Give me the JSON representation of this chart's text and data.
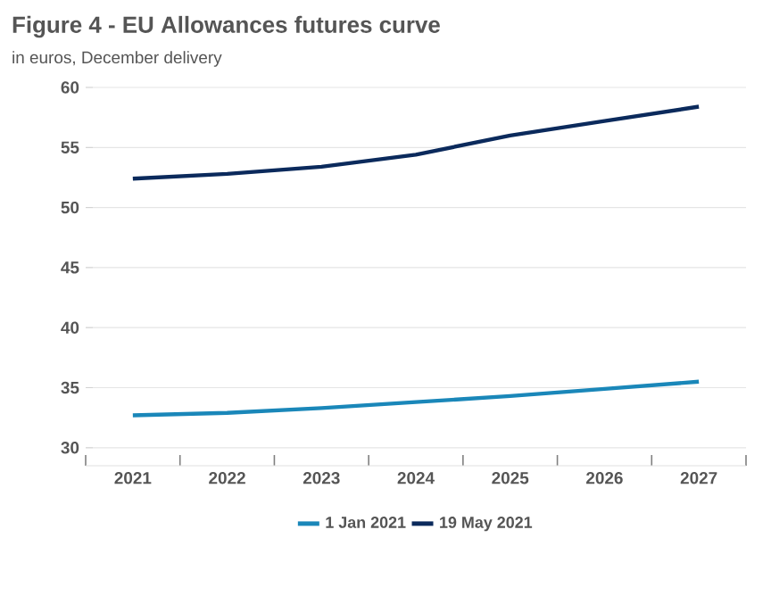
{
  "chart_data": {
    "type": "line",
    "title": "Figure 4 - EU Allowances futures curve",
    "subtitle": "in euros, December delivery",
    "categories": [
      "2021",
      "2022",
      "2023",
      "2024",
      "2025",
      "2026",
      "2027"
    ],
    "series": [
      {
        "name": "1 Jan 2021",
        "color": "#1a87b9",
        "values": [
          32.7,
          32.9,
          33.3,
          33.8,
          34.3,
          34.9,
          35.5
        ]
      },
      {
        "name": "19 May 2021",
        "color": "#0b2a5c",
        "values": [
          52.4,
          52.8,
          53.4,
          54.4,
          56.0,
          57.2,
          58.4
        ]
      }
    ],
    "ylim": [
      28.5,
      60
    ],
    "yticks": [
      30,
      35,
      40,
      45,
      50,
      55,
      60
    ],
    "grid": "y",
    "legend": "bottom",
    "marker": "none",
    "line_style": "solid"
  }
}
